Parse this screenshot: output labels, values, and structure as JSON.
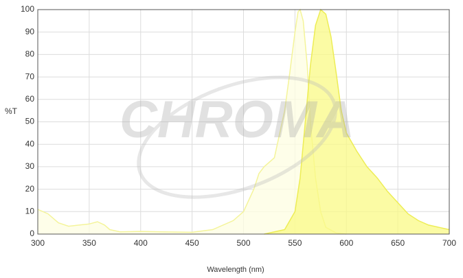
{
  "chart_data": {
    "type": "area",
    "watermark": "CHROMA",
    "xlabel": "Wavelength (nm)",
    "ylabel": "%T",
    "xlim": [
      300,
      700
    ],
    "xticks": [
      300,
      350,
      400,
      450,
      500,
      550,
      600,
      650,
      700
    ],
    "ylim": [
      0,
      100
    ],
    "yticks": [
      0,
      10,
      20,
      30,
      40,
      50,
      60,
      70,
      80,
      90,
      100
    ],
    "grid": true,
    "series": [
      {
        "color": "#f4f49a",
        "fill": "#fdfde2",
        "x": [
          300,
          310,
          320,
          330,
          340,
          350,
          358,
          365,
          370,
          380,
          400,
          420,
          450,
          470,
          490,
          500,
          510,
          515,
          520,
          530,
          540,
          545,
          550,
          553,
          555,
          558,
          562,
          565,
          570,
          575,
          580,
          590,
          600
        ],
        "values": [
          11,
          9,
          5,
          3.5,
          4,
          4.5,
          5.5,
          4,
          2,
          1,
          1.2,
          1,
          0.8,
          2,
          6,
          10,
          20,
          27,
          30,
          34,
          55,
          72,
          90,
          99,
          100,
          95,
          75,
          50,
          25,
          10,
          3,
          0.5,
          0
        ]
      },
      {
        "color": "#eded55",
        "fill": "#fafa85",
        "x": [
          520,
          540,
          550,
          555,
          560,
          565,
          570,
          575,
          580,
          585,
          590,
          595,
          600,
          610,
          620,
          630,
          640,
          650,
          660,
          670,
          680,
          690,
          700
        ],
        "values": [
          0,
          2,
          10,
          25,
          50,
          75,
          93,
          100,
          98,
          88,
          72,
          55,
          45,
          37,
          30,
          25,
          19,
          14,
          9,
          6,
          4,
          3,
          2
        ]
      }
    ]
  }
}
